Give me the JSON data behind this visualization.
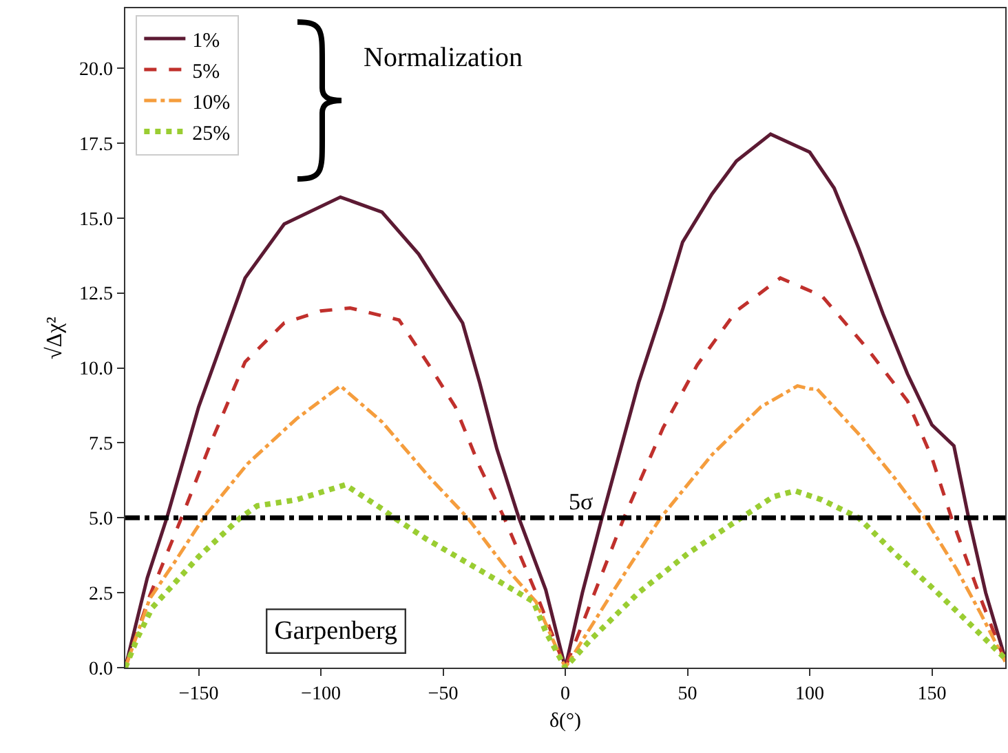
{
  "chart_data": {
    "type": "line",
    "xlabel": "δ(°)",
    "ylabel": "√Δχ²",
    "xlim": [
      -180,
      180
    ],
    "ylim": [
      0,
      22
    ],
    "xticks": [
      {
        "value": -150,
        "label": "−150"
      },
      {
        "value": -100,
        "label": "−100"
      },
      {
        "value": -50,
        "label": "−50"
      },
      0,
      50,
      100,
      150
    ],
    "yticks": [
      {
        "value": 0,
        "label": "0.0"
      },
      {
        "value": 2.5,
        "label": "2.5"
      },
      {
        "value": 5,
        "label": "5.0"
      },
      {
        "value": 7.5,
        "label": "7.5"
      },
      {
        "value": 10,
        "label": "10.0"
      },
      {
        "value": 12.5,
        "label": "12.5"
      },
      {
        "value": 15,
        "label": "15.0"
      },
      {
        "value": 17.5,
        "label": "17.5"
      },
      {
        "value": 20,
        "label": "20.0"
      }
    ],
    "grid": false,
    "legend": "top left",
    "marker": "none",
    "legend_title": "Normalization",
    "annotations": [
      "Garpenberg"
    ],
    "ref_lines": [
      {
        "axis": "y",
        "value": 5,
        "label": "5σ",
        "color": "#000000",
        "line_style": "dashdot"
      }
    ],
    "series": [
      {
        "name": "1%",
        "color": "#5c1a33",
        "line_style": "solid",
        "x": [
          -180,
          -171,
          -163,
          -150,
          -131,
          -115,
          -92,
          -75,
          -60,
          -42,
          -35,
          -28,
          -19,
          -8,
          0,
          7,
          15,
          30,
          40,
          48,
          60,
          70,
          84,
          100,
          110,
          120,
          130,
          140,
          150,
          159,
          165,
          172,
          180
        ],
        "values": [
          0,
          3,
          5,
          8.7,
          13,
          14.8,
          15.7,
          15.2,
          13.8,
          11.5,
          9.5,
          7.3,
          5,
          2.6,
          0,
          2.5,
          5,
          9.5,
          12,
          14.2,
          15.8,
          16.9,
          17.8,
          17.2,
          16,
          14,
          11.8,
          9.8,
          8.1,
          7.4,
          5,
          2.5,
          0.3
        ]
      },
      {
        "name": "5%",
        "color": "#c0302c",
        "line_style": "dashed",
        "x": [
          -180,
          -170,
          -157,
          -145,
          -131,
          -115,
          -100,
          -88,
          -68,
          -55,
          -45,
          -35,
          -25,
          -12,
          0,
          12,
          24,
          40,
          54,
          70,
          88,
          105,
          123,
          140,
          150,
          158,
          170,
          180
        ],
        "values": [
          0,
          2.4,
          5,
          7.5,
          10.2,
          11.5,
          11.9,
          12,
          11.6,
          10,
          8.7,
          6.7,
          5,
          2.5,
          0,
          2.5,
          5,
          8,
          10.1,
          11.9,
          13,
          12.4,
          10.7,
          8.9,
          7,
          5,
          2.3,
          0.2
        ]
      },
      {
        "name": "10%",
        "color": "#f59d3d",
        "line_style": "dashdot",
        "x": [
          -180,
          -170,
          -160,
          -148,
          -130,
          -110,
          -92,
          -75,
          -55,
          -40,
          -25,
          -12,
          0,
          20,
          39,
          60,
          80,
          95,
          100,
          103,
          120,
          135,
          147,
          160,
          170,
          180
        ],
        "values": [
          0,
          2.3,
          3.5,
          5,
          6.8,
          8.3,
          9.4,
          8.2,
          6.3,
          5,
          3.4,
          2.2,
          0,
          2.6,
          5,
          7.1,
          8.7,
          9.4,
          9.3,
          9.3,
          7.8,
          6.3,
          5,
          3.3,
          1.8,
          0.2
        ]
      },
      {
        "name": "25%",
        "color": "#9acd32",
        "line_style": "dotted",
        "x": [
          -180,
          -175,
          -169,
          -150,
          -133,
          -126,
          -110,
          -90,
          -75,
          -70,
          -57,
          -38,
          -13,
          -8,
          0,
          10,
          30,
          50,
          72,
          85,
          94,
          105,
          120,
          135,
          151,
          165,
          180
        ],
        "values": [
          0,
          1,
          2,
          3.7,
          5,
          5.4,
          5.6,
          6.1,
          5.3,
          5,
          4.3,
          3.4,
          2.2,
          1.2,
          0,
          0.9,
          2.5,
          3.8,
          5,
          5.7,
          5.9,
          5.6,
          5,
          3.8,
          2.6,
          1.5,
          0.3
        ]
      }
    ]
  }
}
